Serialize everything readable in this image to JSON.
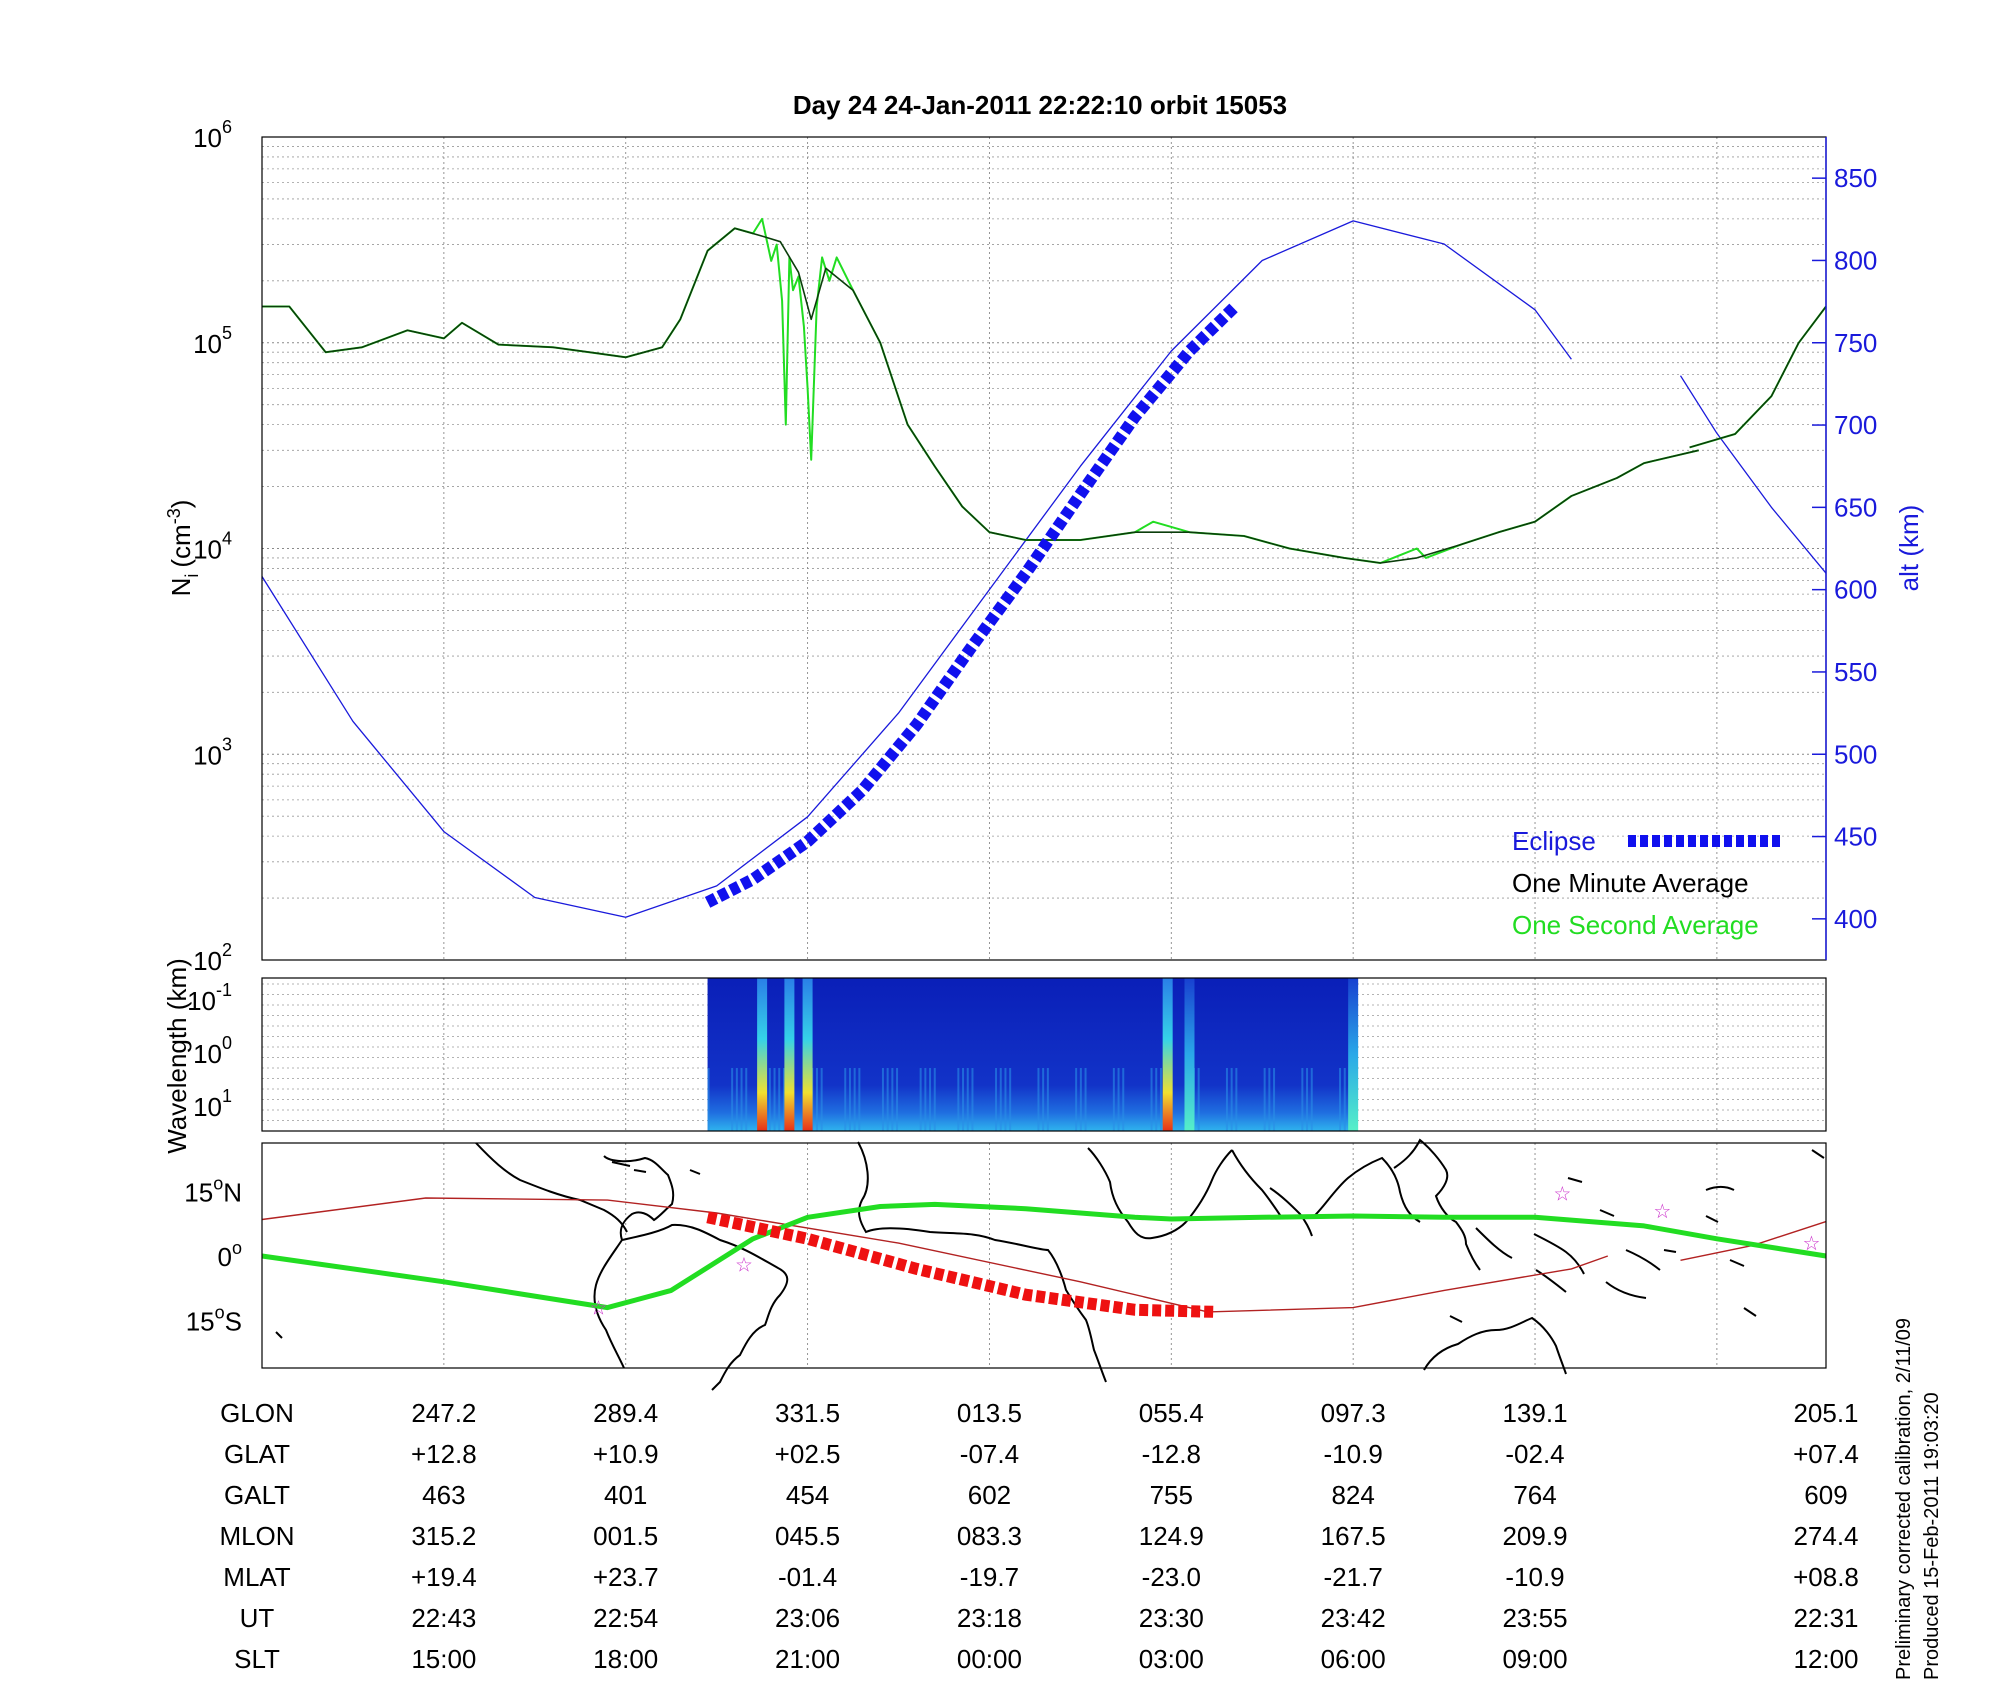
{
  "title": "Day 24  24-Jan-2011 22:22:10   orbit 15053",
  "colors": {
    "axis_right": "#1a1adb",
    "one_second": "#22dd22",
    "one_minute": "#0b3d0b",
    "eclipse": "#1010ee",
    "track": "#22dd22",
    "eclipse_track": "#ee1111",
    "mag_equator": "#b22222",
    "stars": "#cc33cc"
  },
  "chart_data": [
    {
      "type": "line",
      "panel": "ion-density",
      "ylabel_left": "N",
      "ylabel_left_sub": "i",
      "ylabel_left_unit": "(cm",
      "ylabel_left_exp": "-3",
      "ylabel_left_close": ")",
      "ylabel_right": "alt (km)",
      "yscale_left": "log",
      "ylim_left": [
        100,
        1000000
      ],
      "left_ticks": [
        {
          "base": "10",
          "exp": "2",
          "value": 100
        },
        {
          "base": "10",
          "exp": "3",
          "value": 1000
        },
        {
          "base": "10",
          "exp": "4",
          "value": 10000
        },
        {
          "base": "10",
          "exp": "5",
          "value": 100000
        },
        {
          "base": "10",
          "exp": "6",
          "value": 1000000
        }
      ],
      "ylim_right": [
        375,
        875
      ],
      "right_ticks": [
        "400",
        "450",
        "500",
        "550",
        "600",
        "650",
        "700",
        "750",
        "800",
        "850"
      ],
      "xlim": [
        0,
        8.6
      ],
      "grid": true,
      "legend": [
        "Eclipse",
        "One Minute Average",
        "One Second Average"
      ],
      "legend_position": "bottom-right",
      "series": [
        {
          "name": "One Minute Average",
          "axis": "left",
          "points": [
            [
              0,
              150000
            ],
            [
              0.15,
              150000
            ],
            [
              0.35,
              90000
            ],
            [
              0.55,
              95000
            ],
            [
              0.8,
              115000
            ],
            [
              1.0,
              105000
            ],
            [
              1.1,
              125000
            ],
            [
              1.3,
              98000
            ],
            [
              1.6,
              95000
            ],
            [
              1.8,
              90000
            ],
            [
              2.0,
              85000
            ],
            [
              2.2,
              95000
            ],
            [
              2.3,
              130000
            ],
            [
              2.45,
              280000
            ],
            [
              2.6,
              360000
            ],
            [
              2.75,
              330000
            ],
            [
              2.85,
              310000
            ],
            [
              2.95,
              220000
            ],
            [
              3.02,
              130000
            ],
            [
              3.1,
              230000
            ],
            [
              3.25,
              180000
            ],
            [
              3.4,
              100000
            ],
            [
              3.55,
              40000
            ],
            [
              3.7,
              25000
            ],
            [
              3.85,
              16000
            ],
            [
              4.0,
              12000
            ],
            [
              4.2,
              11000
            ],
            [
              4.5,
              11000
            ],
            [
              4.8,
              12000
            ],
            [
              5.1,
              12000
            ],
            [
              5.4,
              11500
            ],
            [
              5.65,
              10000
            ],
            [
              5.95,
              9000
            ],
            [
              6.15,
              8500
            ],
            [
              6.35,
              9000
            ],
            [
              6.6,
              10500
            ],
            [
              6.8,
              12000
            ],
            [
              7.0,
              13500
            ],
            [
              7.2,
              18000
            ],
            [
              7.45,
              22000
            ],
            [
              7.6,
              26000
            ],
            [
              7.9,
              30000
            ]
          ]
        },
        {
          "name": "One Minute Average (segment 2)",
          "axis": "left",
          "points": [
            [
              7.85,
              31000
            ],
            [
              8.1,
              36000
            ],
            [
              8.3,
              55000
            ],
            [
              8.45,
              100000
            ],
            [
              8.6,
              150000
            ]
          ]
        },
        {
          "name": "One Second Average",
          "axis": "left",
          "points": [
            [
              0,
              150000
            ],
            [
              0.15,
              150000
            ],
            [
              0.35,
              90000
            ],
            [
              0.55,
              95000
            ],
            [
              0.8,
              115000
            ],
            [
              1.0,
              105000
            ],
            [
              1.1,
              125000
            ],
            [
              1.3,
              98000
            ],
            [
              1.6,
              95000
            ],
            [
              1.8,
              90000
            ],
            [
              2.0,
              85000
            ],
            [
              2.2,
              95000
            ],
            [
              2.3,
              130000
            ],
            [
              2.45,
              280000
            ],
            [
              2.6,
              360000
            ],
            [
              2.7,
              340000
            ],
            [
              2.75,
              400000
            ],
            [
              2.8,
              250000
            ],
            [
              2.83,
              300000
            ],
            [
              2.86,
              160000
            ],
            [
              2.88,
              40000
            ],
            [
              2.9,
              260000
            ],
            [
              2.92,
              180000
            ],
            [
              2.95,
              210000
            ],
            [
              2.98,
              120000
            ],
            [
              3.0,
              60000
            ],
            [
              3.02,
              27000
            ],
            [
              3.05,
              150000
            ],
            [
              3.08,
              260000
            ],
            [
              3.12,
              200000
            ],
            [
              3.16,
              260000
            ],
            [
              3.25,
              180000
            ],
            [
              3.4,
              100000
            ],
            [
              3.55,
              40000
            ],
            [
              3.7,
              25000
            ],
            [
              3.85,
              16000
            ],
            [
              4.0,
              12000
            ],
            [
              4.2,
              11000
            ],
            [
              4.5,
              11000
            ],
            [
              4.8,
              12000
            ],
            [
              4.9,
              13500
            ],
            [
              5.1,
              12000
            ],
            [
              5.4,
              11500
            ],
            [
              5.65,
              10000
            ],
            [
              5.95,
              9000
            ],
            [
              6.15,
              8500
            ],
            [
              6.35,
              10000
            ],
            [
              6.4,
              9000
            ],
            [
              6.6,
              10500
            ],
            [
              6.8,
              12000
            ],
            [
              7.0,
              13500
            ],
            [
              7.2,
              18000
            ],
            [
              7.45,
              22000
            ],
            [
              7.6,
              26000
            ],
            [
              7.9,
              30000
            ]
          ]
        },
        {
          "name": "One Second Average (segment 2)",
          "axis": "left",
          "points": [
            [
              7.85,
              31000
            ],
            [
              8.1,
              36000
            ],
            [
              8.3,
              55000
            ],
            [
              8.45,
              100000
            ],
            [
              8.6,
              150000
            ]
          ]
        },
        {
          "name": "Altitude",
          "axis": "right",
          "points": [
            [
              0,
              608
            ],
            [
              0.5,
              520
            ],
            [
              1.0,
              453
            ],
            [
              1.5,
              413
            ],
            [
              2.0,
              401
            ],
            [
              2.5,
              420
            ],
            [
              3.0,
              462
            ],
            [
              3.5,
              525
            ],
            [
              4.0,
              600
            ],
            [
              4.5,
              675
            ],
            [
              5.0,
              745
            ],
            [
              5.5,
              800
            ],
            [
              6.0,
              824
            ],
            [
              6.5,
              810
            ],
            [
              7.0,
              770
            ],
            [
              7.2,
              740
            ]
          ]
        },
        {
          "name": "Altitude (segment 2)",
          "axis": "right",
          "points": [
            [
              7.8,
              730
            ],
            [
              8.0,
              695
            ],
            [
              8.3,
              650
            ],
            [
              8.6,
              610
            ]
          ]
        },
        {
          "name": "Eclipse",
          "axis": "right",
          "points": [
            [
              2.45,
              410
            ],
            [
              2.7,
              424
            ],
            [
              3.0,
              447
            ],
            [
              3.3,
              478
            ],
            [
              3.6,
              518
            ],
            [
              3.9,
              565
            ],
            [
              4.2,
              610
            ],
            [
              4.5,
              658
            ],
            [
              4.8,
              705
            ],
            [
              5.1,
              745
            ],
            [
              5.35,
              772
            ]
          ]
        }
      ]
    },
    {
      "type": "heatmap",
      "panel": "wavelength-spectrogram",
      "ylabel": "Wavelength (km)",
      "ticks": [
        {
          "base": "10",
          "exp": "-1"
        },
        {
          "base": "10",
          "exp": "0"
        },
        {
          "base": "10",
          "exp": "1"
        }
      ],
      "data_span_x": [
        2.45,
        6.0
      ],
      "hot_columns": [
        2.9,
        2.75,
        3.0,
        4.98,
        5.1,
        6.0
      ]
    },
    {
      "type": "map",
      "panel": "ground-track",
      "lat_ticks": [
        {
          "value": "15",
          "deg": "o",
          "hemi": "N",
          "lat": 15
        },
        {
          "value": "0",
          "deg": "o",
          "hemi": "",
          "lat": 0
        },
        {
          "value": "15",
          "deg": "o",
          "hemi": "S",
          "lat": -15
        }
      ],
      "track": [
        [
          0,
          0
        ],
        [
          1.0,
          -6
        ],
        [
          1.9,
          -12
        ],
        [
          2.25,
          -8
        ],
        [
          2.7,
          4
        ],
        [
          3.0,
          9
        ],
        [
          3.4,
          11.5
        ],
        [
          3.7,
          12
        ],
        [
          4.2,
          11
        ],
        [
          4.8,
          9
        ],
        [
          5.0,
          8.6
        ],
        [
          5.5,
          9
        ],
        [
          6.0,
          9.3
        ],
        [
          6.5,
          9
        ],
        [
          7.0,
          9
        ],
        [
          7.6,
          7
        ],
        [
          8.0,
          4
        ],
        [
          8.6,
          0
        ]
      ],
      "eclipse_track": [
        [
          2.45,
          9
        ],
        [
          3.0,
          4
        ],
        [
          3.6,
          -3
        ],
        [
          4.2,
          -9
        ],
        [
          4.8,
          -12.5
        ],
        [
          5.25,
          -13
        ]
      ],
      "mag_equator": [
        [
          0,
          8.5
        ],
        [
          0.9,
          13.5
        ],
        [
          1.9,
          13
        ],
        [
          2.5,
          10
        ],
        [
          3.5,
          3
        ],
        [
          4.5,
          -6
        ],
        [
          5.2,
          -13
        ],
        [
          6.0,
          -12
        ],
        [
          6.5,
          -8
        ],
        [
          7.2,
          -3
        ],
        [
          7.4,
          0
        ]
      ],
      "mag_equator_seg2": [
        [
          7.8,
          -1
        ],
        [
          8.2,
          2.5
        ],
        [
          8.6,
          8
        ]
      ],
      "stars": [
        [
          1.85,
          -12
        ],
        [
          2.65,
          -2
        ],
        [
          7.15,
          14.5
        ],
        [
          7.7,
          10.5
        ],
        [
          8.52,
          3
        ]
      ]
    }
  ],
  "orbit_table": {
    "rows": [
      {
        "label": "GLON",
        "values": [
          "247.2",
          "289.4",
          "331.5",
          "013.5",
          "055.4",
          "097.3",
          "139.1",
          "205.1"
        ]
      },
      {
        "label": "GLAT",
        "values": [
          "+12.8",
          "+10.9",
          "+02.5",
          "-07.4",
          "-12.8",
          "-10.9",
          "-02.4",
          "+07.4"
        ]
      },
      {
        "label": "GALT",
        "values": [
          "463",
          "401",
          "454",
          "602",
          "755",
          "824",
          "764",
          "609"
        ]
      },
      {
        "label": "MLON",
        "values": [
          "315.2",
          "001.5",
          "045.5",
          "083.3",
          "124.9",
          "167.5",
          "209.9",
          "274.4"
        ]
      },
      {
        "label": "MLAT",
        "values": [
          "+19.4",
          "+23.7",
          "-01.4",
          "-19.7",
          "-23.0",
          "-21.7",
          "-10.9",
          "+08.8"
        ]
      },
      {
        "label": "UT",
        "values": [
          "22:43",
          "22:54",
          "23:06",
          "23:18",
          "23:30",
          "23:42",
          "23:55",
          "22:31"
        ]
      },
      {
        "label": "SLT",
        "values": [
          "15:00",
          "18:00",
          "21:00",
          "00:00",
          "03:00",
          "06:00",
          "09:00",
          "12:00"
        ]
      }
    ],
    "column_x": [
      1,
      2,
      3,
      4,
      5,
      6,
      7,
      8.6
    ]
  },
  "side_note_1": "Preliminary corrected calibration, 2/11/09",
  "side_note_2": "Produced 15-Feb-2011 19:03:20"
}
